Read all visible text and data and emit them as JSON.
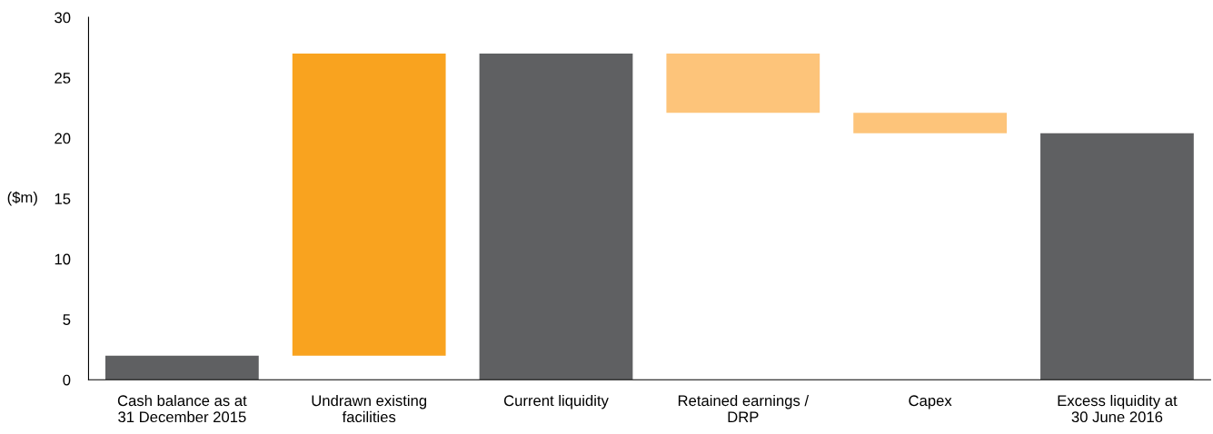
{
  "chart_data": {
    "type": "bar",
    "ylabel": "($m)",
    "categories": [
      "Cash balance as at\n31 December 2015",
      "Undrawn existing\nfacilities",
      "Current liquidity",
      "Retained earnings /\nDRP",
      "Capex",
      "Excess liquidity at\n30 June 2016"
    ],
    "values": [
      2.0,
      25.0,
      27.0,
      4.9,
      1.7,
      20.4
    ],
    "base": [
      0,
      2.0,
      0,
      22.1,
      20.4,
      0
    ],
    "colors": [
      "#5f6062",
      "#f9a31f",
      "#5f6062",
      "#fdc47a",
      "#fdc47a",
      "#5f6062"
    ],
    "ylim": [
      0,
      30
    ],
    "yticks": [
      0,
      5,
      10,
      15,
      20,
      25,
      30
    ],
    "grid": false,
    "legend": false
  }
}
